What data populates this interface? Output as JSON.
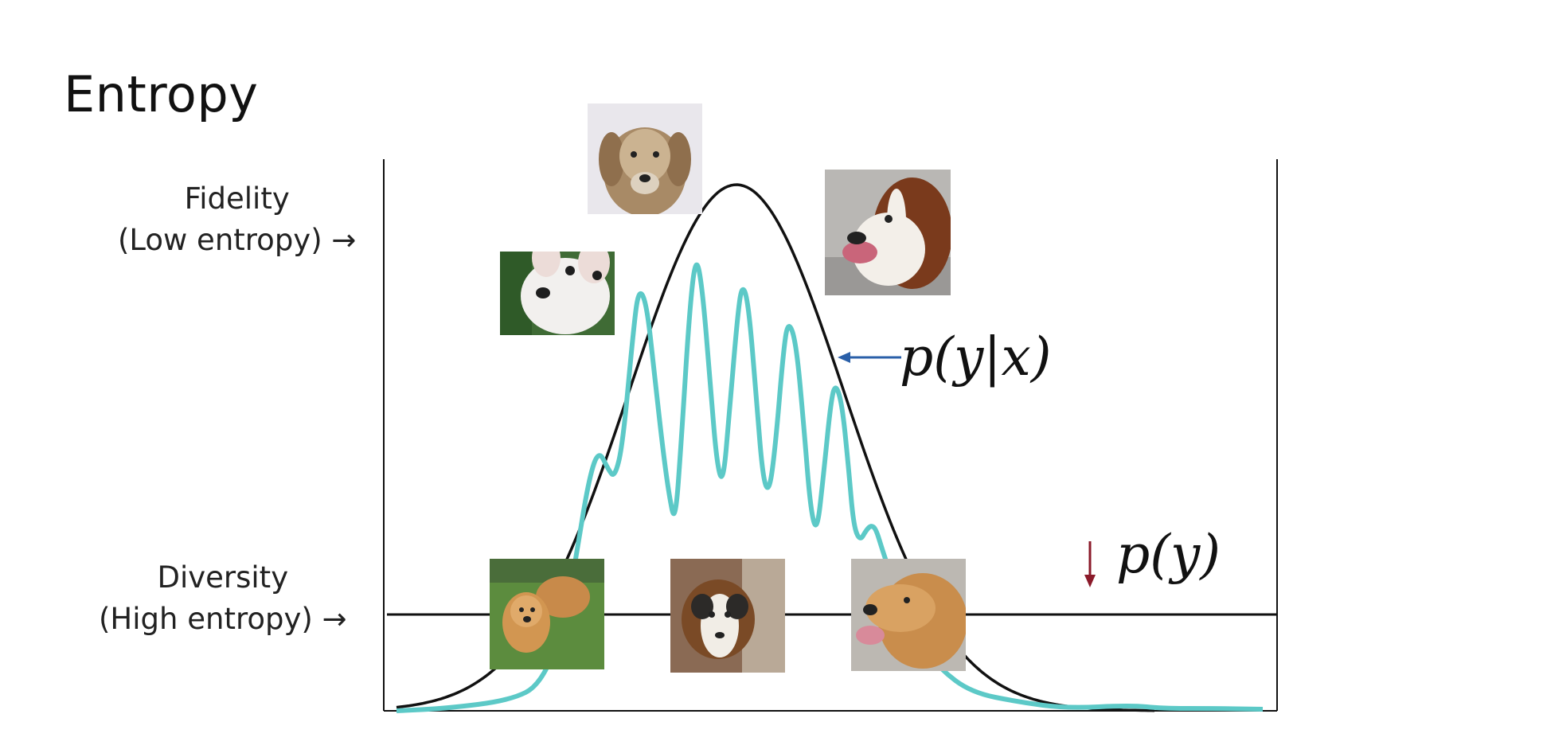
{
  "slide": {
    "title": "Entropy"
  },
  "labels": {
    "fidelity_line1": "Fidelity",
    "fidelity_line2": "(Low entropy) →",
    "diversity_line1": "Diversity",
    "diversity_line2": "(High entropy) →",
    "p_y_given_x": "p(y|x)",
    "p_y": "p(y)"
  },
  "colors": {
    "axis": "#111111",
    "prior_curve": "#111111",
    "conditional_curve": "#5cc9c7",
    "blue_arrow": "#2a5fa8",
    "red_arrow": "#8b1a2a"
  },
  "images": [
    {
      "name": "dog-golden-old-photo"
    },
    {
      "name": "dog-white-chihuahua-photo"
    },
    {
      "name": "dog-saint-bernard-photo"
    },
    {
      "name": "dog-golden-pair-grass-photo"
    },
    {
      "name": "dog-sheltie-photo"
    },
    {
      "name": "dog-golden-retriever-photo"
    }
  ]
}
